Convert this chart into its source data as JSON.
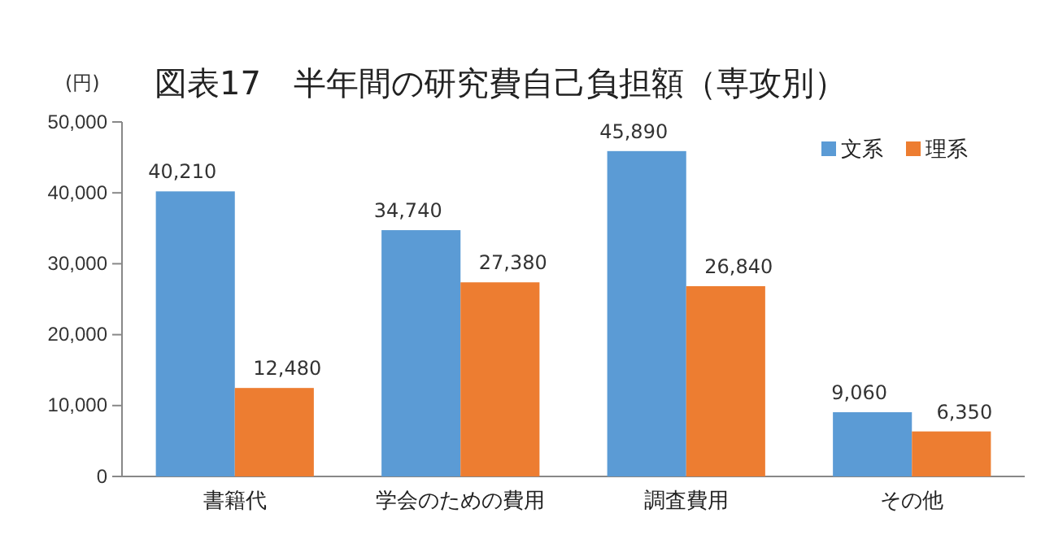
{
  "chart_data": {
    "type": "bar",
    "title": "図表17　半年間の研究費自己負担額（専攻別）",
    "ylabel": "(円)",
    "categories": [
      "書籍代",
      "学会のための費用",
      "調査費用",
      "その他"
    ],
    "series": [
      {
        "name": "文系",
        "color": "#5b9bd5",
        "values": [
          40210,
          34740,
          45890,
          9060
        ],
        "value_labels": [
          "40,210",
          "34,740",
          "45,890",
          "9,060"
        ]
      },
      {
        "name": "理系",
        "color": "#ed7d31",
        "values": [
          12480,
          27380,
          26840,
          6350
        ],
        "value_labels": [
          "12,480",
          "27,380",
          "26,840",
          "6,350"
        ]
      }
    ],
    "ylim": [
      0,
      50000
    ],
    "yticks": [
      {
        "value": 0,
        "label": "0"
      },
      {
        "value": 10000,
        "label": "10,000"
      },
      {
        "value": 20000,
        "label": "20,000"
      },
      {
        "value": 30000,
        "label": "30,000"
      },
      {
        "value": 40000,
        "label": "40,000"
      },
      {
        "value": 50000,
        "label": "50,000"
      }
    ],
    "legend": "top right",
    "grid": false
  }
}
